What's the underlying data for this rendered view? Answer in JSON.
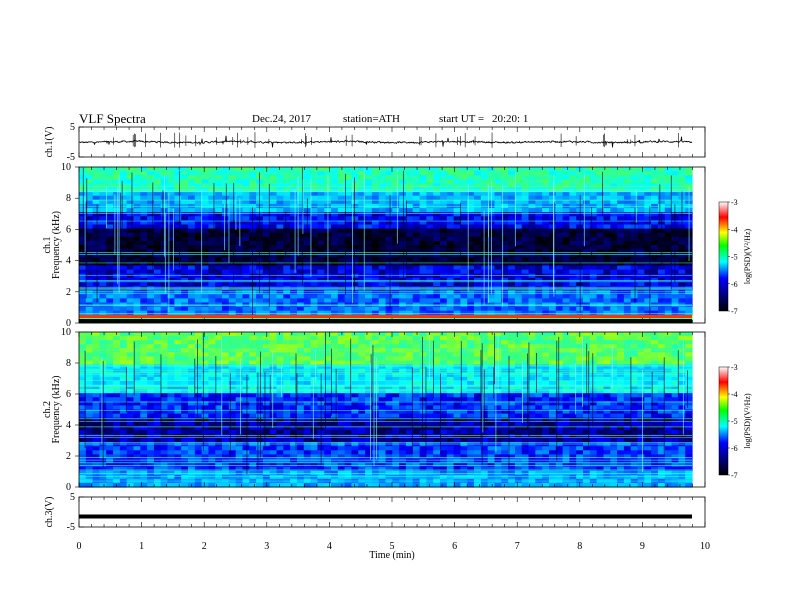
{
  "header": {
    "title": "VLF  Spectra",
    "date": "Dec.24, 2017",
    "station": "station=ATH",
    "start_label": "start  UT  =",
    "start_time": "20:20: 1"
  },
  "chart_data": [
    {
      "type": "line",
      "name": "ch1-waveform",
      "ylabel": "ch.1(V)",
      "ylim": [
        -5,
        5
      ],
      "yticks": [
        "5",
        "-5"
      ],
      "xlim": [
        0,
        10
      ],
      "mean_level": 0,
      "amplitude_range": [
        -1.2,
        1.2
      ]
    },
    {
      "type": "heatmap",
      "name": "ch1-spectrogram",
      "ylabel": "ch.1",
      "ylabel2": "Frequency  (kHz)",
      "ylim": [
        0,
        10
      ],
      "yticks": [
        "0",
        "2",
        "4",
        "6",
        "8",
        "10"
      ],
      "xlim": [
        0,
        9.8
      ],
      "colorbar": {
        "label": "log(PSD)(V²/Hz)",
        "range": [
          -7,
          -3
        ],
        "ticks": [
          "-3",
          "-4",
          "-5",
          "-6",
          "-7"
        ]
      }
    },
    {
      "type": "heatmap",
      "name": "ch2-spectrogram",
      "ylabel": "ch.2",
      "ylabel2": "Frequency  (kHz)",
      "ylim": [
        0,
        10
      ],
      "yticks": [
        "0",
        "2",
        "4",
        "6",
        "8",
        "10"
      ],
      "xlim": [
        0,
        9.8
      ],
      "colorbar": {
        "label": "log(PSD)(V²/Hz)",
        "range": [
          -7,
          -3
        ],
        "ticks": [
          "-3",
          "-4",
          "-5",
          "-6",
          "-7"
        ]
      }
    },
    {
      "type": "line",
      "name": "ch3-waveform",
      "ylabel": "ch.3(V)",
      "ylim": [
        -5,
        5
      ],
      "yticks": [
        "5",
        "-5"
      ],
      "xlim": [
        0,
        10
      ],
      "mean_level": -1.5
    }
  ],
  "xaxis": {
    "label": "Time  (min)",
    "range": [
      0,
      10
    ],
    "ticks": [
      "0",
      "1",
      "2",
      "3",
      "4",
      "5",
      "6",
      "7",
      "8",
      "9",
      "10"
    ]
  },
  "colors": {
    "trace": "#000000",
    "frame": "#000000",
    "palette": [
      "#ffffff",
      "#ff9999",
      "#ff0000",
      "#ffff00",
      "#00ff00",
      "#00ffff",
      "#0000ff",
      "#000055",
      "#000000"
    ]
  }
}
